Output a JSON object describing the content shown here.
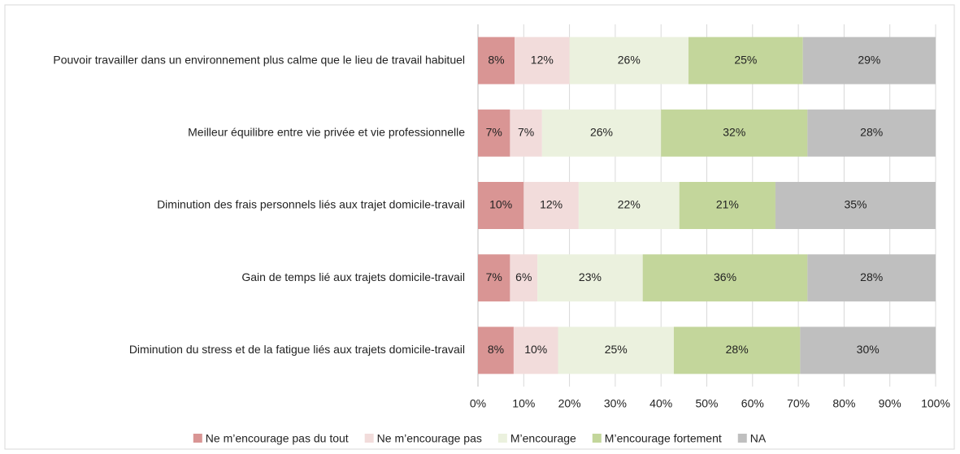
{
  "chart_data": {
    "type": "stacked-bar-horizontal",
    "categories": [
      "Pouvoir travailler dans un environnement plus calme que le lieu de travail habituel",
      "Meilleur équilibre entre vie privée et vie professionnelle",
      "Diminution des frais personnels liés aux trajet domicile-travail",
      "Gain de temps lié aux trajets domicile-travail",
      "Diminution du stress et de la fatigue liés aux trajets domicile-travail"
    ],
    "series": [
      {
        "name": "Ne m’encourage pas du tout",
        "color": "#d99594",
        "values": [
          8,
          7,
          10,
          7,
          7.8
        ],
        "value_labels": [
          "8%",
          "7%",
          "10%",
          "7%",
          "8%"
        ]
      },
      {
        "name": "Ne m’encourage pas",
        "color": "#f2dcdb",
        "values": [
          12,
          7,
          12,
          6,
          9.7
        ],
        "value_labels": [
          "12%",
          "7%",
          "12%",
          "6%",
          "10%"
        ]
      },
      {
        "name": "M’encourage",
        "color": "#ebf1de",
        "values": [
          26,
          26,
          22,
          23,
          25.3
        ],
        "value_labels": [
          "26%",
          "26%",
          "22%",
          "23%",
          "25%"
        ]
      },
      {
        "name": "M’encourage fortement",
        "color": "#c3d69b",
        "values": [
          25,
          32,
          21,
          36,
          27.6
        ],
        "value_labels": [
          "25%",
          "32%",
          "21%",
          "36%",
          "28%"
        ]
      },
      {
        "name": "NA",
        "color": "#bfbfbf",
        "values": [
          29,
          28,
          35,
          28,
          29.6
        ],
        "value_labels": [
          "29%",
          "28%",
          "35%",
          "28%",
          "30%"
        ]
      }
    ],
    "xlim": [
      0,
      100
    ],
    "xticks": [
      {
        "value": 0,
        "label": "0%"
      },
      {
        "value": 10,
        "label": "10%"
      },
      {
        "value": 20,
        "label": "20%"
      },
      {
        "value": 30,
        "label": "30%"
      },
      {
        "value": 40,
        "label": "40%"
      },
      {
        "value": 50,
        "label": "50%"
      },
      {
        "value": 60,
        "label": "60%"
      },
      {
        "value": 70,
        "label": "70%"
      },
      {
        "value": 80,
        "label": "80%"
      },
      {
        "value": 90,
        "label": "90%"
      },
      {
        "value": 100,
        "label": "100%"
      }
    ],
    "grid": true,
    "legend": "bottom"
  }
}
